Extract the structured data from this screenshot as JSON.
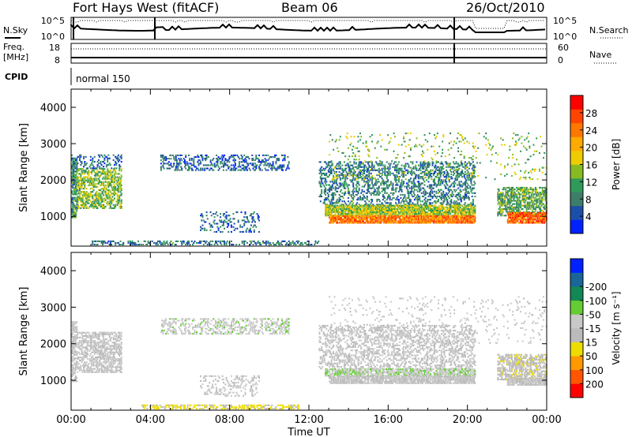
{
  "header": {
    "station": "Fort Hays West (fitACF)",
    "beam": "Beam 06",
    "date": "26/Oct/2010"
  },
  "status": {
    "nsky_label": "N.Sky",
    "nsky_ticks": [
      "10^5",
      "10^0"
    ],
    "nsearch_label": "N.Search",
    "nsearch_ticks": [
      "10^5",
      "10^0"
    ],
    "freq_label": "Freq.",
    "freq_unit": "[MHz]",
    "freq_ticks": [
      "18",
      "8"
    ],
    "nave_label": "Nave",
    "nave_ticks": [
      "60",
      "0"
    ],
    "cpid_label": "CPID",
    "cpid_value": "normal 150"
  },
  "colors": {
    "power": [
      "#0022ff",
      "#1c4faa",
      "#3d7d6a",
      "#2f9a5a",
      "#88bb22",
      "#eecc00",
      "#ffaa00",
      "#ff7700",
      "#ff4400",
      "#ff0000"
    ],
    "velocity": [
      "#ff0000",
      "#ff5500",
      "#ff9900",
      "#eedd00",
      "#bbbbbb",
      "#c8c8c8",
      "#66cc33",
      "#118855",
      "#1a6699",
      "#0022ff"
    ]
  },
  "chart_data": [
    {
      "type": "heatmap",
      "name": "power",
      "xlabel": "Time UT",
      "ylabel": "Slant Range [km]",
      "x_ticks": [
        "00:00",
        "04:00",
        "08:00",
        "12:00",
        "16:00",
        "20:00",
        "00:00"
      ],
      "xlim": [
        0,
        24
      ],
      "ylim": [
        180,
        4500
      ],
      "y_ticks": [
        1000,
        2000,
        3000,
        4000
      ],
      "colorbar": {
        "label": "Power [dB]",
        "ticks": [
          4,
          8,
          12,
          16,
          20,
          24,
          28
        ],
        "range": [
          0,
          32
        ]
      },
      "regions": [
        {
          "t": [
            0.0,
            0.3
          ],
          "r": [
            950,
            2600
          ],
          "level": 10,
          "density": 0.7
        },
        {
          "t": [
            0.3,
            2.5
          ],
          "r": [
            1200,
            2300
          ],
          "level": 14,
          "density": 0.55
        },
        {
          "t": [
            0.0,
            2.5
          ],
          "r": [
            2300,
            2700
          ],
          "level": 6,
          "density": 0.25
        },
        {
          "t": [
            4.5,
            11.0
          ],
          "r": [
            2250,
            2700
          ],
          "level": 6,
          "density": 0.35
        },
        {
          "t": [
            6.5,
            9.5
          ],
          "r": [
            550,
            1100
          ],
          "level": 6,
          "density": 0.2
        },
        {
          "t": [
            1.0,
            12.5
          ],
          "r": [
            200,
            320
          ],
          "level": 8,
          "density": 0.35
        },
        {
          "t": [
            12.5,
            20.4
          ],
          "r": [
            1300,
            2500
          ],
          "level": 8,
          "density": 0.35
        },
        {
          "t": [
            12.8,
            20.4
          ],
          "r": [
            1000,
            1300
          ],
          "level": 15,
          "density": 0.8
        },
        {
          "t": [
            13.0,
            20.4
          ],
          "r": [
            800,
            1000
          ],
          "level": 24,
          "density": 0.85
        },
        {
          "t": [
            21.5,
            24.0
          ],
          "r": [
            1000,
            1800
          ],
          "level": 12,
          "density": 0.6
        },
        {
          "t": [
            22.0,
            24.0
          ],
          "r": [
            800,
            1100
          ],
          "level": 25,
          "density": 0.85
        },
        {
          "t": [
            13.0,
            24.0
          ],
          "r": [
            2000,
            3300
          ],
          "level": 14,
          "density": 0.06
        }
      ]
    },
    {
      "type": "heatmap",
      "name": "velocity",
      "xlabel": "Time UT",
      "ylabel": "Slant Range [km]",
      "x_ticks": [
        "00:00",
        "04:00",
        "08:00",
        "12:00",
        "16:00",
        "20:00",
        "00:00"
      ],
      "xlim": [
        0,
        24
      ],
      "ylim": [
        180,
        4500
      ],
      "y_ticks": [
        1000,
        2000,
        3000,
        4000
      ],
      "colorbar": {
        "label": "Velocity [m s⁻¹]",
        "ticks": [
          "200",
          "100",
          "50",
          "15",
          "-15",
          "-50",
          "-100",
          "-200"
        ],
        "range": [
          -250,
          250
        ]
      },
      "regions": [
        {
          "t": [
            0.0,
            0.3
          ],
          "r": [
            950,
            2600
          ],
          "level": 0,
          "density": 0.6
        },
        {
          "t": [
            0.3,
            2.5
          ],
          "r": [
            1200,
            2300
          ],
          "level": 0,
          "density": 0.55
        },
        {
          "t": [
            4.5,
            11.0
          ],
          "r": [
            2250,
            2700
          ],
          "level": 30,
          "density": 0.35
        },
        {
          "t": [
            6.5,
            9.5
          ],
          "r": [
            550,
            1100
          ],
          "level": 10,
          "density": 0.2
        },
        {
          "t": [
            3.5,
            11.5
          ],
          "r": [
            200,
            320
          ],
          "level": -60,
          "density": 0.45
        },
        {
          "t": [
            12.5,
            20.4
          ],
          "r": [
            1300,
            2500
          ],
          "level": 0,
          "density": 0.35
        },
        {
          "t": [
            12.8,
            20.4
          ],
          "r": [
            1100,
            1300
          ],
          "level": 40,
          "density": 0.7
        },
        {
          "t": [
            13.0,
            20.4
          ],
          "r": [
            900,
            1100
          ],
          "level": 0,
          "density": 0.8
        },
        {
          "t": [
            21.5,
            24.0
          ],
          "r": [
            1000,
            1700
          ],
          "level": -30,
          "density": 0.55
        },
        {
          "t": [
            22.0,
            24.0
          ],
          "r": [
            850,
            1050
          ],
          "level": 0,
          "density": 0.8
        },
        {
          "t": [
            13.0,
            24.0
          ],
          "r": [
            2000,
            3300
          ],
          "level": 20,
          "density": 0.06
        }
      ]
    }
  ]
}
